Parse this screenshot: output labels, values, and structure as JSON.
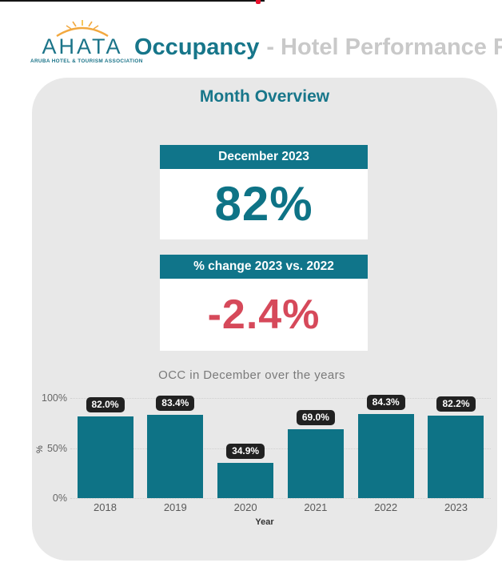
{
  "header": {
    "logo_text": "AHATA",
    "logo_subtext": "ARUBA HOTEL & TOURISM ASSOCIATION",
    "title_accent": "Occupancy",
    "title_rest": "- Hotel Performance R"
  },
  "panel": {
    "title": "Month Overview"
  },
  "cards": [
    {
      "header": "December 2023",
      "value": "82%"
    },
    {
      "header": "% change 2023 vs. 2022",
      "value": "-2.4%"
    }
  ],
  "chart_data": {
    "type": "bar",
    "title": "OCC in December over the years",
    "categories": [
      "2018",
      "2019",
      "2020",
      "2021",
      "2022",
      "2023"
    ],
    "values": [
      82.0,
      83.4,
      34.9,
      69.0,
      84.3,
      82.2
    ],
    "data_labels": [
      "82.0%",
      "83.4%",
      "34.9%",
      "69.0%",
      "84.3%",
      "82.2%"
    ],
    "xlabel": "Year",
    "ylabel": "%",
    "ylim": [
      0,
      100
    ],
    "yticks": [
      {
        "label": "100%",
        "value": 100
      },
      {
        "label": "50%",
        "value": 50
      },
      {
        "label": "0%",
        "value": 0
      }
    ],
    "grid": "horizontal-dotted",
    "legend": "none",
    "bar_color": "#0e7386",
    "data_label_bg": "#212121",
    "data_label_color": "#ffffff"
  },
  "colors": {
    "teal": "#0e7386",
    "teal_header": "#10758a",
    "negative_red": "#d6495a",
    "panel_bg": "#e8e8e8",
    "muted_title": "#c9c9c9",
    "pill_bg": "#212121",
    "logo_sun": "#f2a83e"
  }
}
